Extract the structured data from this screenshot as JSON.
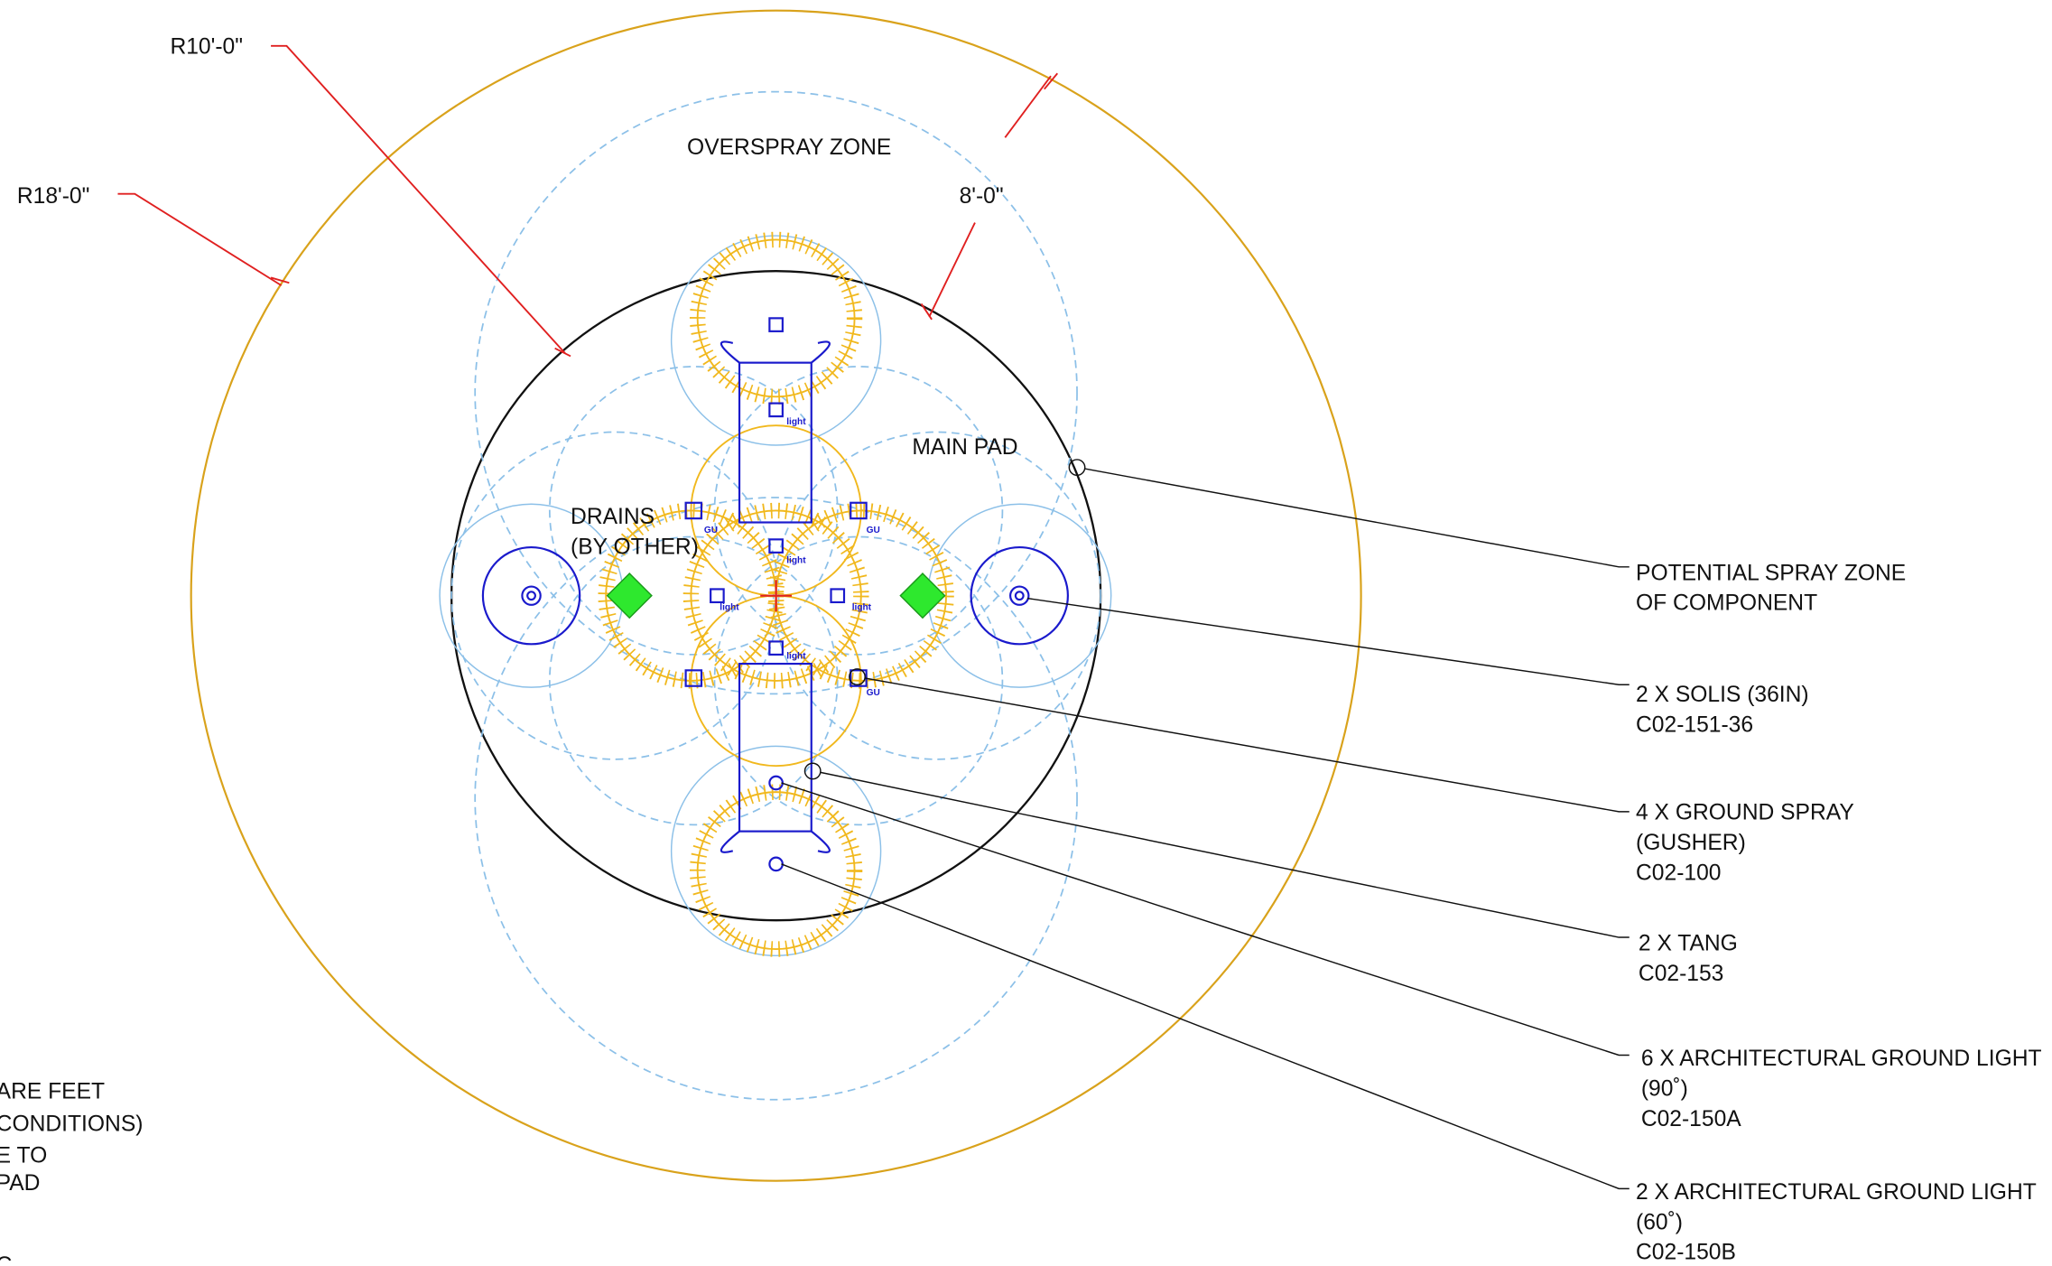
{
  "dimensions": {
    "r10": "R10'-0\"",
    "r18": "R18'-0\"",
    "width": "8'-0\""
  },
  "zones": {
    "overspray": "OVERSPRAY ZONE",
    "main_pad": "MAIN PAD",
    "drains": [
      "DRAINS",
      "(BY OTHER)"
    ]
  },
  "fixture_tags": {
    "light": "light",
    "gu": "GU"
  },
  "callouts": [
    {
      "lines": [
        "POTENTIAL SPRAY ZONE",
        "OF COMPONENT"
      ]
    },
    {
      "lines": [
        "2 X SOLIS (36IN)",
        "C02-151-36"
      ]
    },
    {
      "lines": [
        "4 X GROUND SPRAY",
        "(GUSHER)",
        "C02-100"
      ]
    },
    {
      "lines": [
        "2 X TANG",
        "C02-153"
      ]
    },
    {
      "lines": [
        "6 X ARCHITECTURAL GROUND LIGHT",
        "(90˚)",
        "C02-150A"
      ]
    },
    {
      "lines": [
        "2 X ARCHITECTURAL GROUND LIGHT",
        "(60˚)",
        "C02-150B"
      ]
    }
  ],
  "notes": [
    "ARE FEET",
    "CONDITIONS)",
    "E TO",
    "PAD",
    "C"
  ]
}
